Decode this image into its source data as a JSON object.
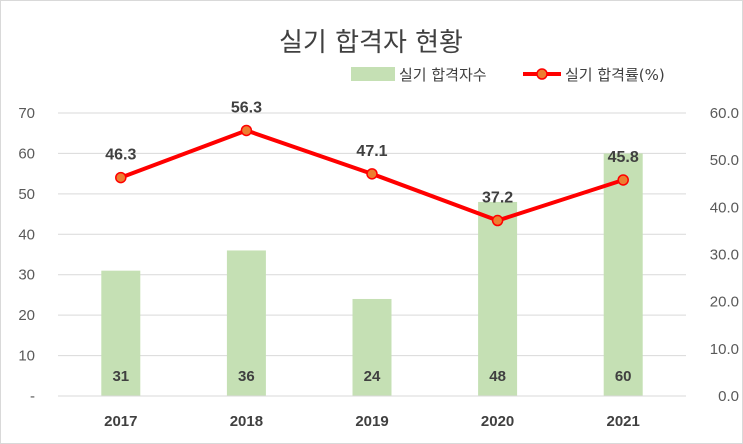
{
  "chart_data": {
    "type": "bar",
    "title": "실기 합격자 현황",
    "categories": [
      "2017",
      "2018",
      "2019",
      "2020",
      "2021"
    ],
    "series": [
      {
        "name": "실기 합격자수",
        "kind": "bar",
        "axis": "left",
        "color": "#c5e0b4",
        "values": [
          31,
          36,
          24,
          48,
          60
        ],
        "data_labels": [
          "31",
          "36",
          "24",
          "48",
          "60"
        ]
      },
      {
        "name": "실기 합격률(%)",
        "kind": "line",
        "axis": "right",
        "color": "#ff0000",
        "marker_color": "#ed7d31",
        "values": [
          46.3,
          56.3,
          47.1,
          37.2,
          45.8
        ],
        "data_labels": [
          "46.3",
          "56.3",
          "47.1",
          "37.2",
          "45.8"
        ]
      }
    ],
    "y_left": {
      "ylim": [
        0,
        70
      ],
      "ticks": [
        0,
        10,
        20,
        30,
        40,
        50,
        60,
        70
      ],
      "tick_labels": [
        "-",
        "10",
        "20",
        "30",
        "40",
        "50",
        "60",
        "70"
      ]
    },
    "y_right": {
      "ylim": [
        0,
        60
      ],
      "ticks": [
        0,
        10,
        20,
        30,
        40,
        50,
        60
      ],
      "tick_labels": [
        "0.0",
        "10.0",
        "20.0",
        "30.0",
        "40.0",
        "50.0",
        "60.0"
      ]
    },
    "grid": true,
    "legend": "top-right"
  }
}
